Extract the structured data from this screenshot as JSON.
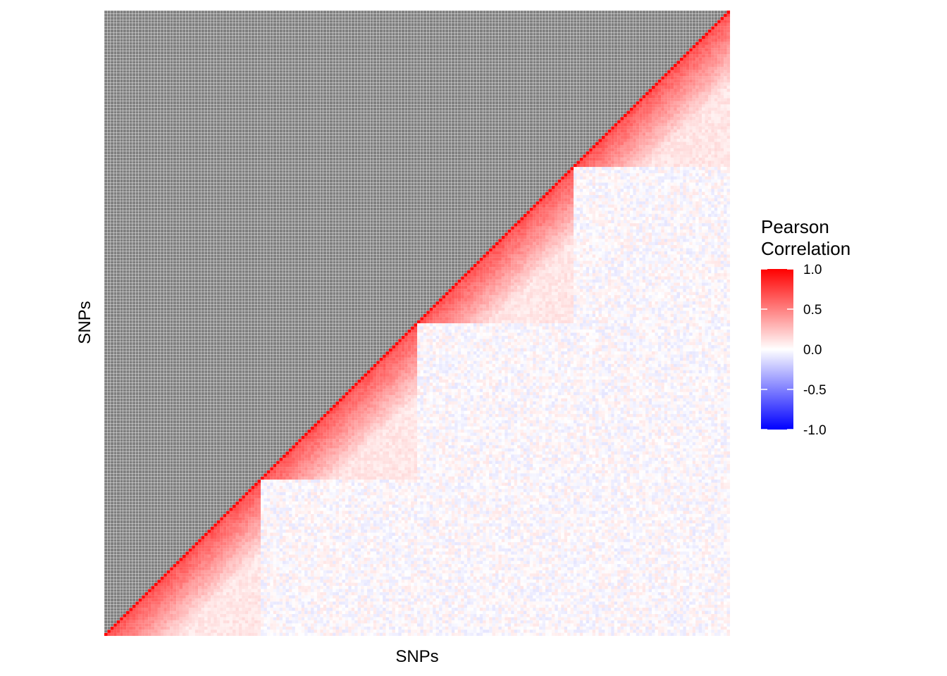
{
  "chart_data": {
    "type": "heatmap",
    "title": "",
    "xlabel": "SNPs",
    "ylabel": "SNPs",
    "lower_triangle_only": true,
    "upper_triangle_color": "#7f7f7f",
    "grid_line_color": "#ffffff",
    "n_snps": 200,
    "block_boundaries": [
      0,
      50,
      100,
      150,
      200
    ],
    "block_correlation": {
      "diagonal": 1.0,
      "within_block_near_diagonal": 0.7,
      "within_block_decay_per_snp": 0.025,
      "within_block_floor": 0.1,
      "between_block_mean": 0.0,
      "between_block_noise": 0.1
    },
    "legend": {
      "title_lines": [
        "Pearson",
        "Correlation"
      ],
      "ticks": [
        "1.0",
        "0.5",
        "0.0",
        "-0.5",
        "-1.0"
      ],
      "tick_values": [
        1.0,
        0.5,
        0.0,
        -0.5,
        -1.0
      ],
      "limits": [
        -1,
        1
      ],
      "position": "right"
    },
    "colors": {
      "high": "#ff0000",
      "mid": "#ffffff",
      "low": "#0000ff"
    }
  }
}
